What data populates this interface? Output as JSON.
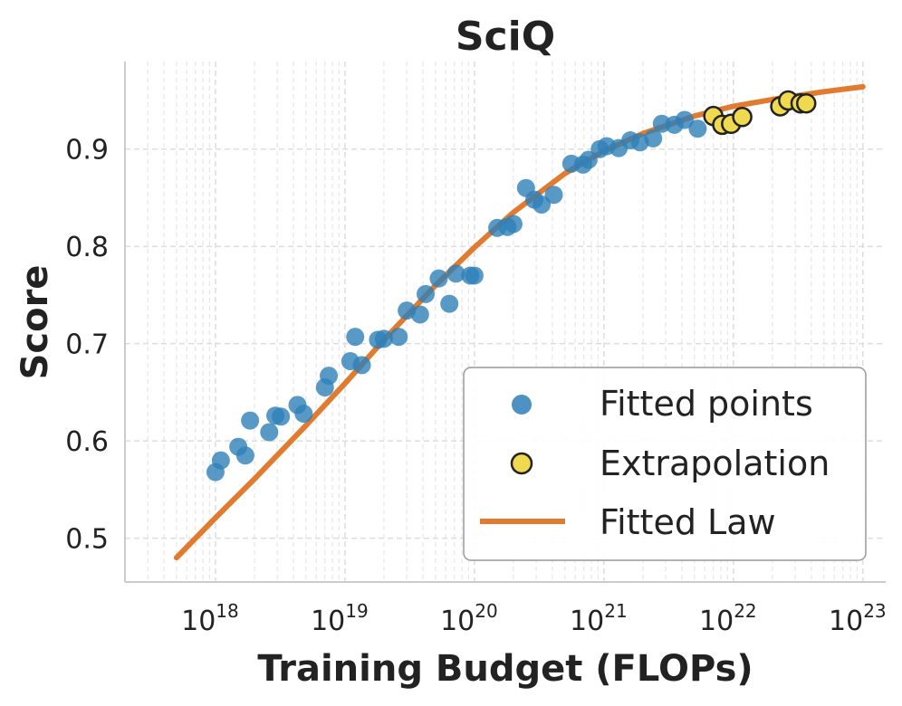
{
  "chart_data": {
    "type": "scatter",
    "title": "SciQ",
    "xlabel": "Training Budget (FLOPs)",
    "ylabel": "Score",
    "xscale": "log",
    "xlim": [
      2e+17,
      1.5e+23
    ],
    "ylim": [
      0.455,
      0.99
    ],
    "grid": true,
    "xticks": [
      {
        "value": 1e+18,
        "base": "10",
        "exp": "18"
      },
      {
        "value": 1e+19,
        "base": "10",
        "exp": "19"
      },
      {
        "value": 1e+20,
        "base": "10",
        "exp": "20"
      },
      {
        "value": 1e+21,
        "base": "10",
        "exp": "21"
      },
      {
        "value": 1e+22,
        "base": "10",
        "exp": "22"
      },
      {
        "value": 1e+23,
        "base": "10",
        "exp": "23"
      }
    ],
    "yticks": [
      {
        "value": 0.5,
        "label": "0.5"
      },
      {
        "value": 0.6,
        "label": "0.6"
      },
      {
        "value": 0.7,
        "label": "0.7"
      },
      {
        "value": 0.8,
        "label": "0.8"
      },
      {
        "value": 0.9,
        "label": "0.9"
      }
    ],
    "legend": {
      "position": "lower-right",
      "entries": [
        {
          "label": "Fitted points",
          "marker": "dot",
          "color": "#2e7fb8"
        },
        {
          "label": "Extrapolation",
          "marker": "dot-outlined",
          "color": "#efd94f"
        },
        {
          "label": "Fitted Law",
          "marker": "line",
          "color": "#e07b2f"
        }
      ]
    },
    "series": [
      {
        "name": "Fitted points",
        "color": "#2e7fb8",
        "points": [
          [
            1e+18,
            0.568
          ],
          [
            1.1e+18,
            0.58
          ],
          [
            1.5e+18,
            0.594
          ],
          [
            1.7e+18,
            0.585
          ],
          [
            1.85e+18,
            0.621
          ],
          [
            2.6e+18,
            0.609
          ],
          [
            2.9e+18,
            0.626
          ],
          [
            3.2e+18,
            0.625
          ],
          [
            4.3e+18,
            0.637
          ],
          [
            4.8e+18,
            0.628
          ],
          [
            7e+18,
            0.655
          ],
          [
            7.5e+18,
            0.667
          ],
          [
            1.1e+19,
            0.682
          ],
          [
            1.2e+19,
            0.707
          ],
          [
            1.35e+19,
            0.678
          ],
          [
            1.8e+19,
            0.704
          ],
          [
            2e+19,
            0.705
          ],
          [
            2.6e+19,
            0.707
          ],
          [
            3e+19,
            0.734
          ],
          [
            3.8e+19,
            0.73
          ],
          [
            4.2e+19,
            0.751
          ],
          [
            5.3e+19,
            0.767
          ],
          [
            6.4e+19,
            0.741
          ],
          [
            7.2e+19,
            0.772
          ],
          [
            9.3e+19,
            0.77
          ],
          [
            1e+20,
            0.77
          ],
          [
            1.5e+20,
            0.819
          ],
          [
            1.8e+20,
            0.82
          ],
          [
            2e+20,
            0.823
          ],
          [
            2.5e+20,
            0.86
          ],
          [
            2.9e+20,
            0.848
          ],
          [
            3.3e+20,
            0.843
          ],
          [
            4.1e+20,
            0.853
          ],
          [
            5.6e+20,
            0.885
          ],
          [
            6.9e+20,
            0.884
          ],
          [
            7.6e+20,
            0.889
          ],
          [
            9.3e+20,
            0.9
          ],
          [
            1.05e+21,
            0.903
          ],
          [
            1.3e+21,
            0.901
          ],
          [
            1.6e+21,
            0.909
          ],
          [
            1.9e+21,
            0.907
          ],
          [
            2.4e+21,
            0.911
          ],
          [
            2.8e+21,
            0.926
          ],
          [
            3.5e+21,
            0.925
          ],
          [
            4.2e+21,
            0.93
          ],
          [
            5.3e+21,
            0.921
          ]
        ]
      },
      {
        "name": "Extrapolation",
        "color": "#efd94f",
        "edgecolor": "#222222",
        "points": [
          [
            7e+21,
            0.934
          ],
          [
            8.2e+21,
            0.925
          ],
          [
            9.6e+21,
            0.926
          ],
          [
            1.17e+22,
            0.933
          ],
          [
            2.3e+22,
            0.944
          ],
          [
            2.65e+22,
            0.95
          ],
          [
            3.3e+22,
            0.947
          ],
          [
            3.65e+22,
            0.947
          ]
        ]
      }
    ],
    "fitted_law": {
      "name": "Fitted Law",
      "color": "#e07b2f",
      "points": [
        [
          5e+17,
          0.48
        ],
        [
          1e+18,
          0.521
        ],
        [
          2e+18,
          0.561
        ],
        [
          5e+18,
          0.616
        ],
        [
          1e+19,
          0.659
        ],
        [
          2e+19,
          0.704
        ],
        [
          5e+19,
          0.76
        ],
        [
          1e+20,
          0.799
        ],
        [
          2e+20,
          0.835
        ],
        [
          5e+20,
          0.875
        ],
        [
          1e+21,
          0.898
        ],
        [
          2e+21,
          0.916
        ],
        [
          5e+21,
          0.934
        ],
        [
          1e+22,
          0.944
        ],
        [
          2e+22,
          0.951
        ],
        [
          5e+22,
          0.959
        ],
        [
          1e+23,
          0.964
        ]
      ]
    }
  }
}
